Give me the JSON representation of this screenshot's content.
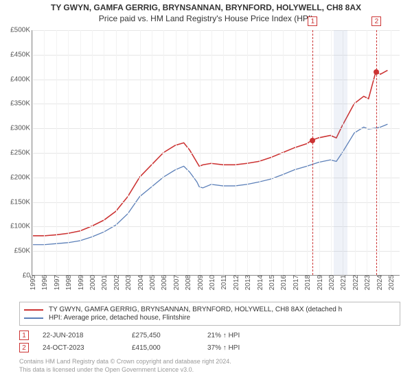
{
  "title_main": "TY GWYN, GAMFA GERRIG, BRYNSANNAN, BRYNFORD, HOLYWELL, CH8 8AX",
  "title_sub": "Price paid vs. HM Land Registry's House Price Index (HPI)",
  "yaxis": {
    "min": 0,
    "max": 500000,
    "step": 50000,
    "labels": [
      "£0",
      "£50K",
      "£100K",
      "£150K",
      "£200K",
      "£250K",
      "£300K",
      "£350K",
      "£400K",
      "£450K",
      "£500K"
    ]
  },
  "xaxis": {
    "min": 1995,
    "max": 2025.8,
    "ticks": [
      1995,
      1996,
      1997,
      1998,
      1999,
      2000,
      2001,
      2002,
      2003,
      2004,
      2005,
      2006,
      2007,
      2008,
      2009,
      2010,
      2011,
      2012,
      2013,
      2014,
      2015,
      2016,
      2017,
      2018,
      2019,
      2020,
      2021,
      2022,
      2023,
      2024,
      2025
    ]
  },
  "shade_region": {
    "from": 2020.2,
    "to": 2021.4
  },
  "colors": {
    "series_red": "#cc3333",
    "series_blue": "#5b7fb8",
    "grid": "#e6e6e6",
    "axis": "#888888",
    "marker": "#cc3333",
    "text": "#555555",
    "shade": "rgba(120,150,200,0.12)",
    "background": "#ffffff"
  },
  "line_width": {
    "red": 1.6,
    "blue": 1.3
  },
  "series_red": [
    [
      1995,
      80000
    ],
    [
      1996,
      80000
    ],
    [
      1997,
      82000
    ],
    [
      1998,
      85000
    ],
    [
      1999,
      90000
    ],
    [
      2000,
      100000
    ],
    [
      2001,
      112000
    ],
    [
      2002,
      130000
    ],
    [
      2003,
      160000
    ],
    [
      2004,
      200000
    ],
    [
      2005,
      225000
    ],
    [
      2006,
      250000
    ],
    [
      2007,
      265000
    ],
    [
      2007.7,
      270000
    ],
    [
      2008.2,
      255000
    ],
    [
      2008.8,
      230000
    ],
    [
      2009,
      222000
    ],
    [
      2009.3,
      225000
    ],
    [
      2010,
      228000
    ],
    [
      2011,
      225000
    ],
    [
      2012,
      225000
    ],
    [
      2013,
      228000
    ],
    [
      2014,
      232000
    ],
    [
      2015,
      240000
    ],
    [
      2016,
      250000
    ],
    [
      2017,
      260000
    ],
    [
      2018,
      268000
    ],
    [
      2018.47,
      275450
    ],
    [
      2019,
      280000
    ],
    [
      2020,
      285000
    ],
    [
      2020.5,
      280000
    ],
    [
      2021,
      305000
    ],
    [
      2022,
      350000
    ],
    [
      2022.8,
      365000
    ],
    [
      2023.2,
      360000
    ],
    [
      2023.81,
      415000
    ],
    [
      2024.2,
      410000
    ],
    [
      2024.8,
      418000
    ]
  ],
  "series_blue": [
    [
      1995,
      62000
    ],
    [
      1996,
      62000
    ],
    [
      1997,
      64000
    ],
    [
      1998,
      66000
    ],
    [
      1999,
      70000
    ],
    [
      2000,
      78000
    ],
    [
      2001,
      88000
    ],
    [
      2002,
      102000
    ],
    [
      2003,
      125000
    ],
    [
      2004,
      160000
    ],
    [
      2005,
      180000
    ],
    [
      2006,
      200000
    ],
    [
      2007,
      215000
    ],
    [
      2007.7,
      222000
    ],
    [
      2008.2,
      210000
    ],
    [
      2008.8,
      190000
    ],
    [
      2009,
      180000
    ],
    [
      2009.3,
      178000
    ],
    [
      2010,
      185000
    ],
    [
      2011,
      182000
    ],
    [
      2012,
      182000
    ],
    [
      2013,
      185000
    ],
    [
      2014,
      190000
    ],
    [
      2015,
      196000
    ],
    [
      2016,
      205000
    ],
    [
      2017,
      215000
    ],
    [
      2018,
      222000
    ],
    [
      2019,
      230000
    ],
    [
      2020,
      235000
    ],
    [
      2020.5,
      232000
    ],
    [
      2021,
      250000
    ],
    [
      2022,
      290000
    ],
    [
      2022.8,
      302000
    ],
    [
      2023.2,
      298000
    ],
    [
      2023.8,
      300000
    ],
    [
      2024.2,
      302000
    ],
    [
      2024.8,
      308000
    ]
  ],
  "markers": [
    {
      "idx": "1",
      "year": 2018.47,
      "value": 275450
    },
    {
      "idx": "2",
      "year": 2023.81,
      "value": 415000
    }
  ],
  "legend": [
    {
      "color": "#cc3333",
      "label": "TY GWYN, GAMFA GERRIG, BRYNSANNAN, BRYNFORD, HOLYWELL, CH8 8AX (detached h"
    },
    {
      "color": "#5b7fb8",
      "label": "HPI: Average price, detached house, Flintshire"
    }
  ],
  "sales": [
    {
      "idx": "1",
      "date": "22-JUN-2018",
      "price": "£275,450",
      "diff": "21% ↑ HPI"
    },
    {
      "idx": "2",
      "date": "24-OCT-2023",
      "price": "£415,000",
      "diff": "37% ↑ HPI"
    }
  ],
  "footer1": "Contains HM Land Registry data © Crown copyright and database right 2024.",
  "footer2": "This data is licensed under the Open Government Licence v3.0."
}
